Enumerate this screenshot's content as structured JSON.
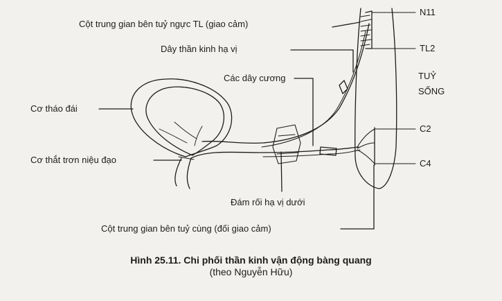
{
  "labels": {
    "cot_trung_gian_nguc": "Cột trung gian bên tuỷ ngực TL (giao cảm)",
    "day_than_kinh": "Dây thần kinh hạ vị",
    "cac_day_cuong": "Các dây cương",
    "co_thao_dai": "Cơ tháo đái",
    "co_that": "Cơ thắt trơn niệu đạo",
    "dam_roi": "Đám rối hạ vị dưới",
    "cot_trung_gian_cung": "Cột trung gian bên tuỷ cùng (đối giao cảm)",
    "n11": "N11",
    "tl2": "TL2",
    "tuy": "TUỶ",
    "song": "SỐNG",
    "c2": "C2",
    "c4": "C4"
  },
  "caption": {
    "title": "Hình 25.11. Chi phối thần kinh vận động bàng quang",
    "subtitle": "(theo Nguyễn Hữu)"
  }
}
